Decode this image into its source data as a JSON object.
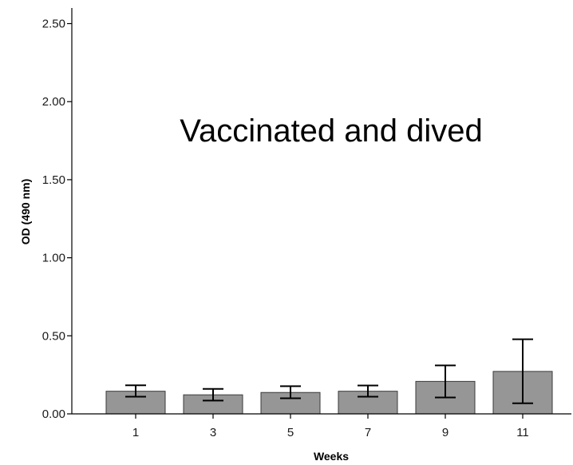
{
  "chart_data": {
    "type": "bar",
    "categories": [
      "1",
      "3",
      "5",
      "7",
      "9",
      "11"
    ],
    "values": [
      0.145,
      0.122,
      0.137,
      0.145,
      0.208,
      0.272
    ],
    "error_low": [
      0.11,
      0.085,
      0.1,
      0.11,
      0.105,
      0.068
    ],
    "error_high": [
      0.183,
      0.16,
      0.177,
      0.182,
      0.31,
      0.478
    ],
    "title": "",
    "annotation": "Vaccinated and dived",
    "xlabel": "Weeks",
    "ylabel": "OD (490 nm)",
    "ylim": [
      0,
      2.6
    ],
    "y_ticks": [
      0.0,
      0.5,
      1.0,
      1.5,
      2.0,
      2.5
    ],
    "y_tick_labels": [
      "0.00",
      "0.50",
      "1.00",
      "1.50",
      "2.00",
      "2.50"
    ],
    "grid": false,
    "legend": "none",
    "colors": {
      "bar_fill": "#969696",
      "bar_stroke": "#3a3a3a",
      "error_bar": "#000000",
      "axis": "#000000"
    }
  }
}
